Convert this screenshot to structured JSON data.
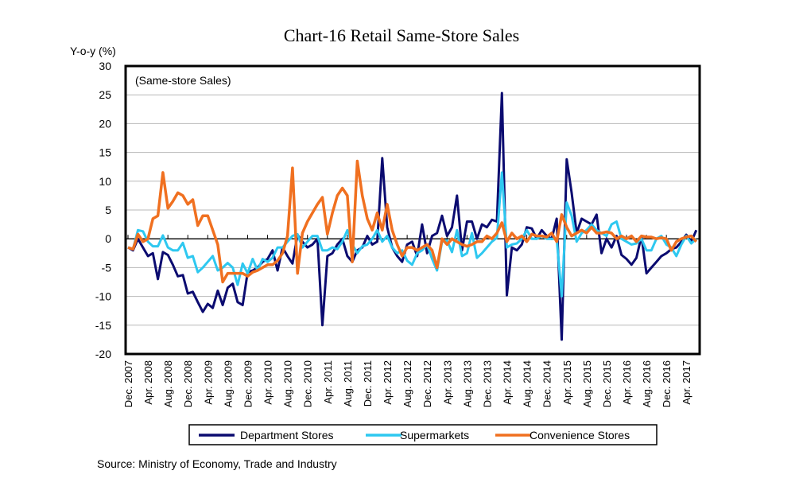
{
  "chart_data": {
    "type": "line",
    "title": "Chart-16 Retail Same-Store Sales",
    "ylabel": "Y-o-y (%)",
    "annotation": "(Same-store Sales)",
    "source": "Source: Ministry of Economy, Trade and Industry",
    "ylim": [
      -20,
      30
    ],
    "yticks": [
      -20,
      -15,
      -10,
      -5,
      0,
      5,
      10,
      15,
      20,
      25,
      30
    ],
    "grid": true,
    "legend_position": "bottom",
    "x_start": "Dec. 2007",
    "x_end": "Jun. 2017",
    "x_frequency": "monthly",
    "xtick_labels": [
      "Dec. 2007",
      "Apr. 2008",
      "Aug. 2008",
      "Dec. 2008",
      "Apr. 2009",
      "Aug. 2009",
      "Dec. 2009",
      "Apr. 2010",
      "Aug. 2010",
      "Dec. 2010",
      "Apr. 2011",
      "Aug. 2011",
      "Dec. 2011",
      "Apr. 2012",
      "Aug. 2012",
      "Dec. 2012",
      "Apr. 2013",
      "Aug. 2013",
      "Dec. 2013",
      "Apr. 2014",
      "Aug. 2014",
      "Dec. 2014",
      "Apr. 2015",
      "Aug. 2015",
      "Dec. 2015",
      "Apr. 2016",
      "Aug. 2016",
      "Dec. 2016",
      "Apr. 2017"
    ],
    "series": [
      {
        "name": "Department Stores",
        "color": "#0b0b70",
        "values": [
          -1.5,
          -2,
          0,
          -1.5,
          -3,
          -2.5,
          -7,
          -2.3,
          -2.8,
          -4.5,
          -6.5,
          -6.3,
          -9.5,
          -9.2,
          -11,
          -12.7,
          -11.3,
          -12,
          -9,
          -11.5,
          -8.5,
          -7.8,
          -11,
          -11.5,
          -5.8,
          -5.5,
          -5,
          -4,
          -3.5,
          -2,
          -5.5,
          -1.5,
          -3,
          -4.3,
          0.7,
          -0.5,
          -1.5,
          -1,
          0,
          -15,
          -3,
          -2.5,
          -1,
          0,
          -3,
          -4,
          -2,
          -1.5,
          0.5,
          -1,
          -0.5,
          14,
          2,
          -1.5,
          -3,
          -4,
          -1,
          -0.5,
          -3,
          2.5,
          -2.5,
          0.5,
          1,
          4,
          0.5,
          2,
          7.5,
          -2,
          3,
          3,
          0,
          2.5,
          2,
          3.3,
          3,
          25.3,
          -9.8,
          -1.5,
          -2,
          -1,
          2,
          1.8,
          0,
          1.5,
          0.5,
          0,
          3.5,
          -17.5,
          13.8,
          8,
          1,
          3.5,
          3,
          2.5,
          4.2,
          -2.5,
          0,
          -1.5,
          0.5,
          -2.8,
          -3.5,
          -4.5,
          -3.3,
          0.5,
          -6,
          -5,
          -4,
          -3,
          -2.5,
          -1.8,
          -1.5,
          -0.5,
          0.7,
          -0.5,
          1.5
        ]
      },
      {
        "name": "Supermarkets",
        "color": "#2ec8f0",
        "values": [
          -1.5,
          -1.8,
          1.5,
          1.3,
          -0.5,
          -1.3,
          -1.3,
          0.6,
          -1.5,
          -2,
          -2,
          -0.7,
          -3.3,
          -3,
          -5.8,
          -5,
          -4,
          -3,
          -5.5,
          -5,
          -4.2,
          -5,
          -8,
          -4.3,
          -6,
          -3.5,
          -5.5,
          -3.5,
          -4,
          -3.3,
          -1.5,
          -1.5,
          -0.5,
          0.5,
          0.8,
          -1.5,
          -0.5,
          0.5,
          0.5,
          -2,
          -2,
          -1.5,
          -1.8,
          -0.5,
          1.5,
          -1,
          -2.5,
          -1.3,
          -1,
          0,
          1.5,
          -0.5,
          0.5,
          -1.5,
          -2.5,
          -2,
          -3.8,
          -4.5,
          -2.5,
          -2,
          -1,
          -3.5,
          -5.5,
          -0.5,
          -0.3,
          -2.3,
          1.5,
          -3,
          -2.5,
          1,
          -3.3,
          -2.5,
          -1.5,
          -0.5,
          0.2,
          11.5,
          -1.5,
          -1,
          -0.8,
          0,
          1.5,
          0,
          0,
          0.5,
          0,
          0,
          0,
          -10,
          6.3,
          4,
          -0.5,
          1,
          1.5,
          2.5,
          1.5,
          1,
          0.5,
          2.5,
          3,
          0,
          -0.5,
          -1,
          -0.8,
          0,
          -2,
          -2,
          0,
          0.5,
          -1,
          -1.5,
          -3,
          -1,
          0.5,
          -0.8,
          0
        ]
      },
      {
        "name": "Convenience Stores",
        "color": "#f07020",
        "values": [
          -1.5,
          -1.8,
          0.8,
          -0.5,
          0,
          3.5,
          4,
          11.5,
          5.3,
          6.5,
          8,
          7.5,
          6,
          6.8,
          2.3,
          4,
          4,
          1.5,
          -1,
          -7.5,
          -6,
          -6,
          -6,
          -6,
          -6.5,
          -5.8,
          -5.5,
          -5,
          -4.5,
          -4.5,
          -3.8,
          -2.5,
          0.5,
          12.3,
          -6,
          1,
          3,
          4.5,
          6,
          7.2,
          0.8,
          4.5,
          7.5,
          8.8,
          7.5,
          -4,
          13.5,
          7.5,
          3.5,
          1.5,
          4.5,
          1.5,
          6,
          1.5,
          -1,
          -3,
          -1.5,
          -1.5,
          -2,
          -1.5,
          -1,
          -2,
          -5,
          0,
          -1,
          0,
          -0.5,
          -1,
          -1.3,
          -1,
          -0.5,
          -0.5,
          0.5,
          0,
          1,
          2.8,
          -0.5,
          1,
          0,
          0.5,
          -0.5,
          0.8,
          0.5,
          0.5,
          0.3,
          1,
          -0.5,
          4.2,
          2,
          0.5,
          1,
          1.5,
          1,
          2,
          1,
          1,
          1.2,
          1,
          0,
          0.5,
          0,
          0.5,
          -0.5,
          0.5,
          0.3,
          0.3,
          0,
          0.2,
          0,
          -2,
          -0.5,
          0,
          0.3,
          0.5,
          -0.5
        ]
      }
    ]
  }
}
